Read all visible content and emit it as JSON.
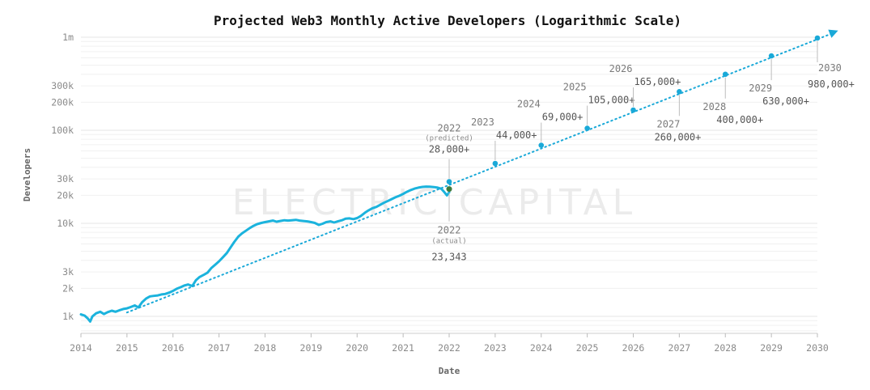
{
  "chart_data": {
    "type": "line",
    "title": "Projected Web3 Monthly Active Developers (Logarithmic Scale)",
    "xlabel": "Date",
    "ylabel": "Developers",
    "y_scale": "log",
    "xlim": [
      2014,
      2030.4
    ],
    "ylim": [
      700,
      1200000
    ],
    "x_ticks": [
      "2014",
      "2015",
      "2016",
      "2017",
      "2018",
      "2019",
      "2020",
      "2021",
      "2022",
      "2023",
      "2024",
      "2025",
      "2026",
      "2027",
      "2028",
      "2029",
      "2030"
    ],
    "y_ticks": [
      {
        "value": 1000,
        "label": "1k"
      },
      {
        "value": 2000,
        "label": "2k"
      },
      {
        "value": 3000,
        "label": "3k"
      },
      {
        "value": 10000,
        "label": "10k"
      },
      {
        "value": 20000,
        "label": "20k"
      },
      {
        "value": 30000,
        "label": "30k"
      },
      {
        "value": 100000,
        "label": "100k"
      },
      {
        "value": 200000,
        "label": "200k"
      },
      {
        "value": 300000,
        "label": "300k"
      },
      {
        "value": 1000000,
        "label": "1m"
      }
    ],
    "grid": true,
    "watermark": "ELECTRIC CAPITAL",
    "colors": {
      "actual": "#1bb3dd",
      "projection": "#1aa9d8",
      "actual_2022_point": "#3d7a3d"
    },
    "series": [
      {
        "kind": "actual",
        "style": "solid",
        "points": [
          [
            2014.0,
            1050
          ],
          [
            2014.08,
            1020
          ],
          [
            2014.15,
            950
          ],
          [
            2014.2,
            880
          ],
          [
            2014.25,
            1000
          ],
          [
            2014.33,
            1080
          ],
          [
            2014.42,
            1120
          ],
          [
            2014.5,
            1060
          ],
          [
            2014.58,
            1110
          ],
          [
            2014.67,
            1150
          ],
          [
            2014.75,
            1120
          ],
          [
            2014.83,
            1160
          ],
          [
            2014.92,
            1200
          ],
          [
            2015.0,
            1220
          ],
          [
            2015.08,
            1260
          ],
          [
            2015.17,
            1310
          ],
          [
            2015.25,
            1250
          ],
          [
            2015.33,
            1420
          ],
          [
            2015.42,
            1560
          ],
          [
            2015.5,
            1640
          ],
          [
            2015.58,
            1660
          ],
          [
            2015.67,
            1680
          ],
          [
            2015.75,
            1720
          ],
          [
            2015.83,
            1740
          ],
          [
            2015.92,
            1800
          ],
          [
            2016.0,
            1880
          ],
          [
            2016.08,
            1980
          ],
          [
            2016.17,
            2060
          ],
          [
            2016.25,
            2150
          ],
          [
            2016.33,
            2200
          ],
          [
            2016.42,
            2120
          ],
          [
            2016.5,
            2450
          ],
          [
            2016.58,
            2650
          ],
          [
            2016.67,
            2800
          ],
          [
            2016.75,
            2950
          ],
          [
            2016.83,
            3300
          ],
          [
            2016.92,
            3600
          ],
          [
            2017.0,
            3900
          ],
          [
            2017.08,
            4300
          ],
          [
            2017.17,
            4800
          ],
          [
            2017.25,
            5500
          ],
          [
            2017.33,
            6300
          ],
          [
            2017.42,
            7200
          ],
          [
            2017.5,
            7800
          ],
          [
            2017.58,
            8300
          ],
          [
            2017.67,
            8900
          ],
          [
            2017.75,
            9400
          ],
          [
            2017.83,
            9800
          ],
          [
            2017.92,
            10100
          ],
          [
            2018.0,
            10300
          ],
          [
            2018.08,
            10500
          ],
          [
            2018.17,
            10700
          ],
          [
            2018.25,
            10400
          ],
          [
            2018.33,
            10600
          ],
          [
            2018.42,
            10800
          ],
          [
            2018.5,
            10700
          ],
          [
            2018.58,
            10800
          ],
          [
            2018.67,
            10900
          ],
          [
            2018.75,
            10700
          ],
          [
            2018.83,
            10600
          ],
          [
            2018.92,
            10500
          ],
          [
            2019.0,
            10300
          ],
          [
            2019.08,
            10100
          ],
          [
            2019.17,
            9600
          ],
          [
            2019.25,
            9900
          ],
          [
            2019.33,
            10300
          ],
          [
            2019.42,
            10500
          ],
          [
            2019.5,
            10200
          ],
          [
            2019.58,
            10500
          ],
          [
            2019.67,
            10800
          ],
          [
            2019.75,
            11200
          ],
          [
            2019.83,
            11300
          ],
          [
            2019.92,
            11100
          ],
          [
            2020.0,
            11400
          ],
          [
            2020.08,
            12000
          ],
          [
            2020.17,
            13000
          ],
          [
            2020.25,
            13800
          ],
          [
            2020.33,
            14500
          ],
          [
            2020.42,
            15000
          ],
          [
            2020.5,
            15800
          ],
          [
            2020.58,
            16600
          ],
          [
            2020.67,
            17400
          ],
          [
            2020.75,
            18200
          ],
          [
            2020.83,
            19000
          ],
          [
            2020.92,
            19800
          ],
          [
            2021.0,
            20700
          ],
          [
            2021.08,
            21800
          ],
          [
            2021.17,
            22800
          ],
          [
            2021.25,
            23600
          ],
          [
            2021.33,
            24200
          ],
          [
            2021.42,
            24600
          ],
          [
            2021.5,
            24800
          ],
          [
            2021.58,
            24700
          ],
          [
            2021.67,
            24500
          ],
          [
            2021.75,
            24200
          ],
          [
            2021.83,
            23500
          ],
          [
            2021.9,
            21500
          ],
          [
            2021.95,
            20000
          ],
          [
            2022.0,
            21500
          ]
        ]
      },
      {
        "kind": "projection",
        "style": "dotted",
        "points": [
          [
            2015.0,
            1100
          ],
          [
            2030.45,
            1180000
          ]
        ]
      }
    ],
    "projected_points": [
      {
        "x": 2022,
        "y": 28000,
        "year": "2022",
        "sub": "(predicted)",
        "value_label": "28,000+",
        "label_pos": "above"
      },
      {
        "x": 2023,
        "y": 44000,
        "year": "2023",
        "sub": "",
        "value_label": "44,000+",
        "label_pos": "above"
      },
      {
        "x": 2024,
        "y": 69000,
        "year": "2024",
        "sub": "",
        "value_label": "69,000+",
        "label_pos": "above"
      },
      {
        "x": 2025,
        "y": 105000,
        "year": "2025",
        "sub": "",
        "value_label": "105,000+",
        "label_pos": "above"
      },
      {
        "x": 2026,
        "y": 165000,
        "year": "2026",
        "sub": "",
        "value_label": "165,000+",
        "label_pos": "above"
      },
      {
        "x": 2027,
        "y": 260000,
        "year": "2027",
        "sub": "",
        "value_label": "260,000+",
        "label_pos": "below"
      },
      {
        "x": 2028,
        "y": 400000,
        "year": "2028",
        "sub": "",
        "value_label": "400,000+",
        "label_pos": "below"
      },
      {
        "x": 2029,
        "y": 630000,
        "year": "2029",
        "sub": "",
        "value_label": "630,000+",
        "label_pos": "below"
      },
      {
        "x": 2030,
        "y": 980000,
        "year": "2030",
        "sub": "",
        "value_label": "980,000+",
        "label_pos": "below"
      }
    ],
    "actual_point": {
      "x": 2022,
      "y": 23343,
      "year": "2022",
      "sub": "(actual)",
      "value_label": "23,343",
      "label_pos": "below"
    }
  }
}
